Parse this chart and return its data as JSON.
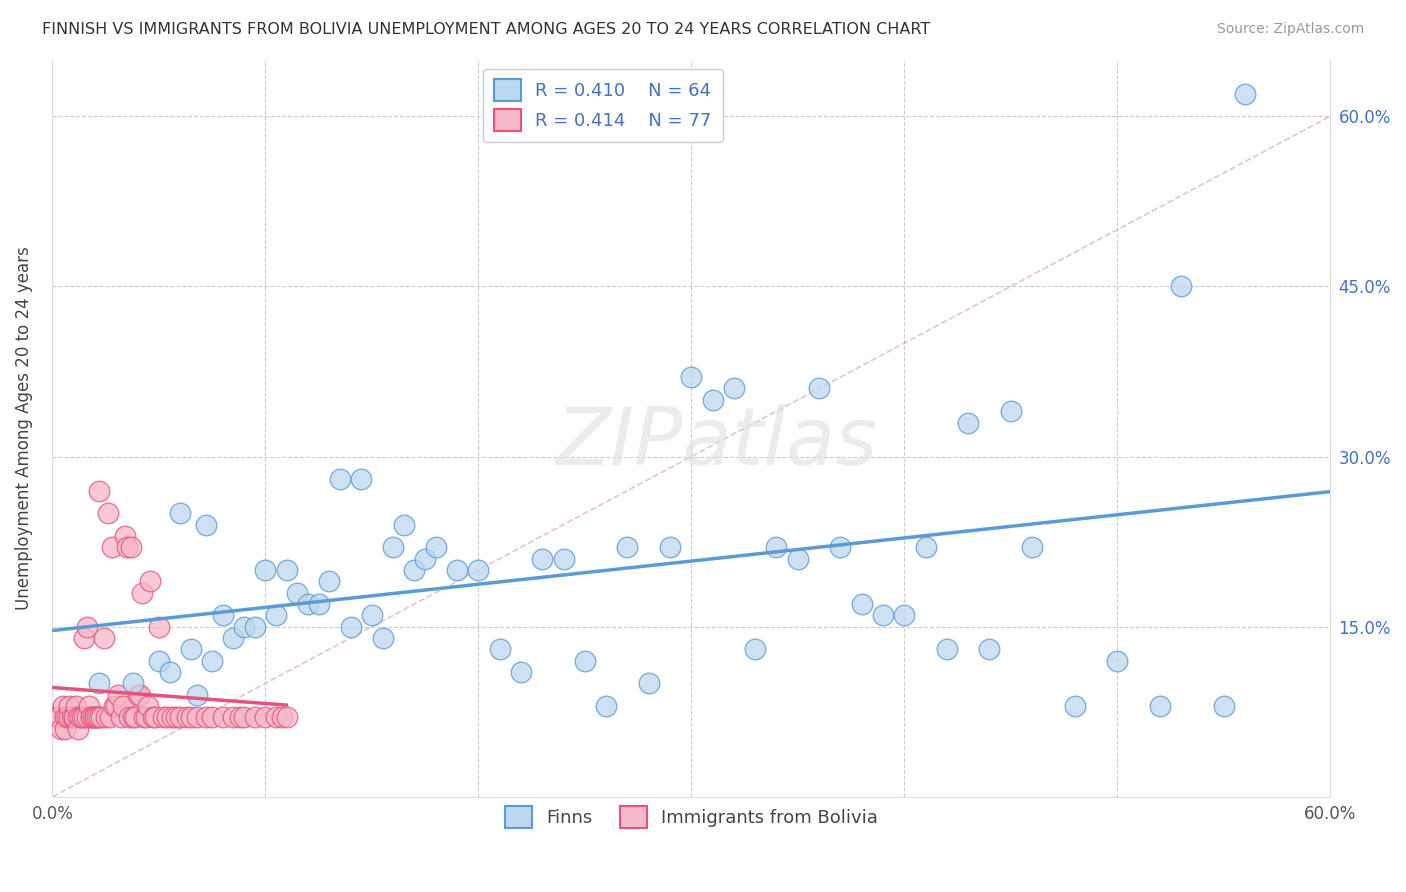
{
  "title": "FINNISH VS IMMIGRANTS FROM BOLIVIA UNEMPLOYMENT AMONG AGES 20 TO 24 YEARS CORRELATION CHART",
  "source": "Source: ZipAtlas.com",
  "ylabel": "Unemployment Among Ages 20 to 24 years",
  "xlim": [
    0.0,
    0.6
  ],
  "ylim": [
    0.0,
    0.65
  ],
  "x_ticks": [
    0.0,
    0.1,
    0.2,
    0.3,
    0.4,
    0.5,
    0.6
  ],
  "x_tick_labels_left": [
    "0.0%",
    "",
    "",
    "",
    "",
    "",
    "60.0%"
  ],
  "y_ticks": [
    0.0,
    0.15,
    0.3,
    0.45,
    0.6
  ],
  "y_tick_labels_right": [
    "",
    "15.0%",
    "30.0%",
    "45.0%",
    "60.0%"
  ],
  "legend_label_finns": "Finns",
  "legend_label_bolivia": "Immigrants from Bolivia",
  "finns_color": "#5b9bd5",
  "finns_face": "#bdd7ee",
  "bolivia_color": "#e8527a",
  "bolivia_face": "#f4b8c8",
  "R_finns": "0.410",
  "N_finns": "64",
  "R_bolivia": "0.414",
  "N_bolivia": "77",
  "watermark": "ZIPatlas",
  "finns_x": [
    0.022,
    0.038,
    0.05,
    0.055,
    0.06,
    0.065,
    0.068,
    0.072,
    0.075,
    0.08,
    0.085,
    0.09,
    0.095,
    0.1,
    0.105,
    0.11,
    0.115,
    0.12,
    0.125,
    0.13,
    0.135,
    0.14,
    0.145,
    0.15,
    0.155,
    0.16,
    0.165,
    0.17,
    0.175,
    0.18,
    0.19,
    0.2,
    0.21,
    0.22,
    0.23,
    0.24,
    0.25,
    0.26,
    0.27,
    0.28,
    0.29,
    0.3,
    0.31,
    0.32,
    0.33,
    0.34,
    0.35,
    0.36,
    0.37,
    0.38,
    0.39,
    0.4,
    0.41,
    0.42,
    0.43,
    0.44,
    0.45,
    0.46,
    0.48,
    0.5,
    0.52,
    0.53,
    0.55,
    0.56
  ],
  "finns_y": [
    0.1,
    0.1,
    0.12,
    0.11,
    0.25,
    0.13,
    0.09,
    0.24,
    0.12,
    0.16,
    0.14,
    0.15,
    0.15,
    0.2,
    0.16,
    0.2,
    0.18,
    0.17,
    0.17,
    0.19,
    0.28,
    0.15,
    0.28,
    0.16,
    0.14,
    0.22,
    0.24,
    0.2,
    0.21,
    0.22,
    0.2,
    0.2,
    0.13,
    0.11,
    0.21,
    0.21,
    0.12,
    0.08,
    0.22,
    0.1,
    0.22,
    0.37,
    0.35,
    0.36,
    0.13,
    0.22,
    0.21,
    0.36,
    0.22,
    0.17,
    0.16,
    0.16,
    0.22,
    0.13,
    0.33,
    0.13,
    0.34,
    0.22,
    0.08,
    0.12,
    0.08,
    0.45,
    0.08,
    0.62
  ],
  "bolivia_x": [
    0.0,
    0.002,
    0.003,
    0.004,
    0.005,
    0.006,
    0.006,
    0.007,
    0.008,
    0.008,
    0.009,
    0.01,
    0.01,
    0.011,
    0.012,
    0.012,
    0.013,
    0.014,
    0.015,
    0.015,
    0.016,
    0.016,
    0.017,
    0.018,
    0.018,
    0.019,
    0.02,
    0.02,
    0.021,
    0.022,
    0.022,
    0.023,
    0.024,
    0.025,
    0.026,
    0.027,
    0.028,
    0.029,
    0.03,
    0.031,
    0.032,
    0.033,
    0.034,
    0.035,
    0.036,
    0.037,
    0.038,
    0.039,
    0.04,
    0.041,
    0.042,
    0.043,
    0.044,
    0.045,
    0.046,
    0.047,
    0.048,
    0.05,
    0.052,
    0.054,
    0.056,
    0.058,
    0.06,
    0.063,
    0.065,
    0.068,
    0.072,
    0.075,
    0.08,
    0.085,
    0.088,
    0.09,
    0.095,
    0.1,
    0.105,
    0.108,
    0.11
  ],
  "bolivia_y": [
    0.07,
    0.07,
    0.07,
    0.06,
    0.08,
    0.07,
    0.06,
    0.07,
    0.07,
    0.08,
    0.07,
    0.07,
    0.07,
    0.08,
    0.07,
    0.06,
    0.07,
    0.07,
    0.07,
    0.14,
    0.07,
    0.15,
    0.08,
    0.07,
    0.07,
    0.07,
    0.07,
    0.07,
    0.07,
    0.27,
    0.07,
    0.07,
    0.14,
    0.07,
    0.25,
    0.07,
    0.22,
    0.08,
    0.08,
    0.09,
    0.07,
    0.08,
    0.23,
    0.22,
    0.07,
    0.22,
    0.07,
    0.07,
    0.09,
    0.09,
    0.18,
    0.07,
    0.07,
    0.08,
    0.19,
    0.07,
    0.07,
    0.15,
    0.07,
    0.07,
    0.07,
    0.07,
    0.07,
    0.07,
    0.07,
    0.07,
    0.07,
    0.07,
    0.07,
    0.07,
    0.07,
    0.07,
    0.07,
    0.07,
    0.07,
    0.07,
    0.07
  ]
}
